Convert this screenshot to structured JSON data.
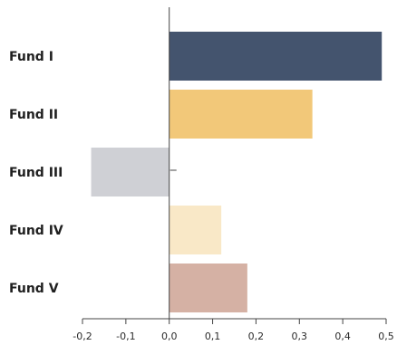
{
  "chart_data": {
    "type": "bar",
    "orientation": "horizontal",
    "title": "",
    "xlabel": "",
    "ylabel": "",
    "categories": [
      "Fund I",
      "Fund II",
      "Fund III",
      "Fund IV",
      "Fund V"
    ],
    "values": [
      0.49,
      0.33,
      -0.18,
      0.12,
      0.18
    ],
    "colors": [
      "#44546e",
      "#f2c879",
      "#cfd0d5",
      "#f9e8c7",
      "#d5b1a4"
    ],
    "xlim": [
      -0.2,
      0.5
    ],
    "xticks": [
      -0.2,
      -0.1,
      0.0,
      0.1,
      0.2,
      0.3,
      0.4,
      0.5
    ],
    "xtick_labels": [
      "-0,2",
      "-0,1",
      "0,0",
      "0,1",
      "0,2",
      "0,3",
      "0,4",
      "0,5"
    ],
    "grid": false,
    "legend": "none"
  }
}
